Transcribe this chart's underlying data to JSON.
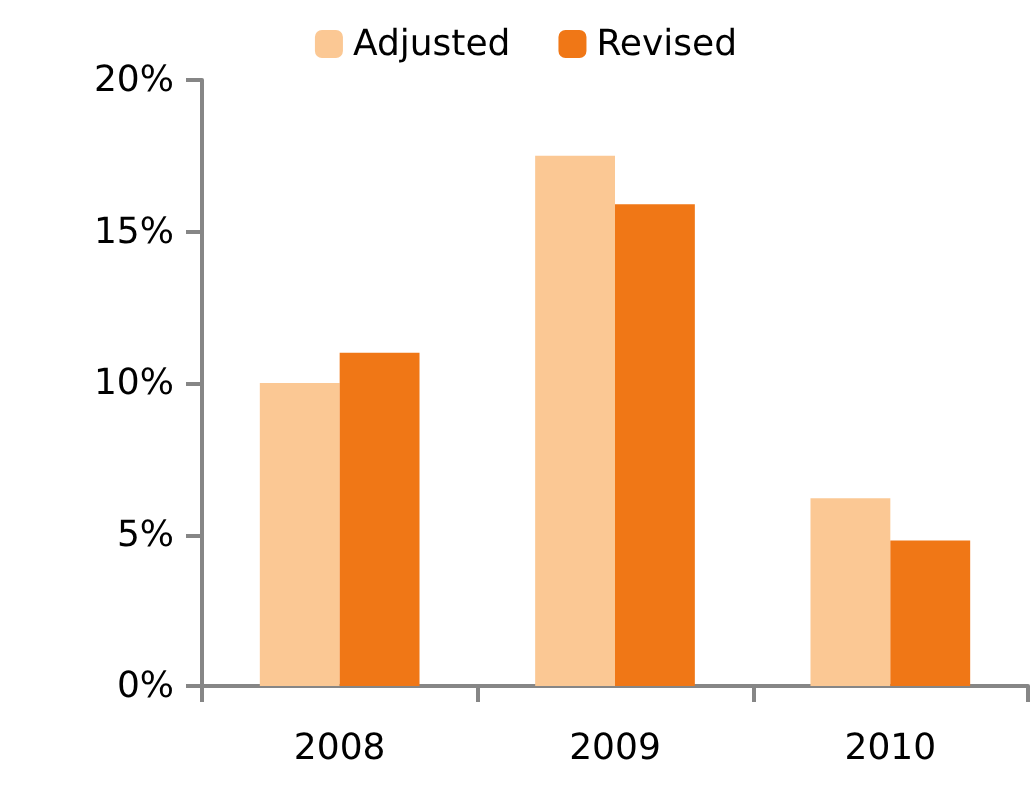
{
  "chart_data": {
    "type": "bar",
    "categories": [
      "2008",
      "2009",
      "2010"
    ],
    "series": [
      {
        "name": "Adjusted",
        "color": "#fbc894",
        "values": [
          10.0,
          17.5,
          6.2
        ]
      },
      {
        "name": "Revised",
        "color": "#f07716",
        "values": [
          11.0,
          15.9,
          4.8
        ]
      }
    ],
    "ylim": [
      0,
      20
    ],
    "yticks": [
      {
        "value": 0,
        "label": "0%"
      },
      {
        "value": 5,
        "label": "5%"
      },
      {
        "value": 10,
        "label": "10%"
      },
      {
        "value": 15,
        "label": "15%"
      },
      {
        "value": 20,
        "label": "20%"
      }
    ],
    "grid": false,
    "legend": "top"
  }
}
